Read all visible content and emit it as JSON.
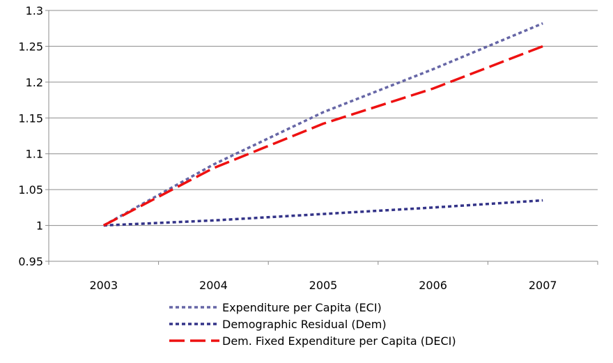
{
  "chart_data": {
    "type": "line",
    "title": "",
    "xlabel": "",
    "ylabel": "",
    "x": [
      "2003",
      "2004",
      "2005",
      "2006",
      "2007"
    ],
    "ylim": [
      0.95,
      1.3
    ],
    "yticks": [
      "0.95",
      "1",
      "1.05",
      "1.1",
      "1.15",
      "1.2",
      "1.25",
      "1.3"
    ],
    "grid": "horizontal",
    "legend_position": "bottom",
    "series": [
      {
        "name": "Expenditure per Capita (ECI)",
        "values": [
          1.0,
          1.085,
          1.158,
          1.218,
          1.282
        ],
        "color": "#6666a6",
        "style": "dotted"
      },
      {
        "name": "Demographic Residual (Dem)",
        "values": [
          1.0,
          1.007,
          1.016,
          1.025,
          1.035
        ],
        "color": "#333388",
        "style": "dotted"
      },
      {
        "name": "Dem. Fixed Expenditure per Capita (DECI)",
        "values": [
          1.0,
          1.08,
          1.142,
          1.191,
          1.25
        ],
        "color": "#ee1111",
        "style": "dashed"
      }
    ]
  }
}
